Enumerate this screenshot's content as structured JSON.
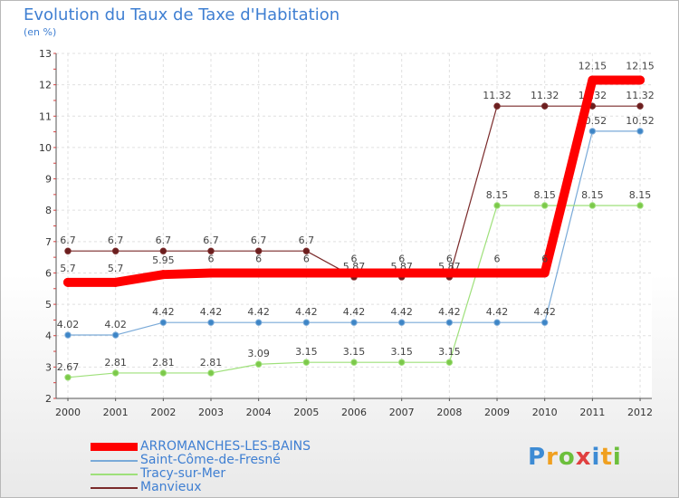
{
  "title": "Evolution du Taux de Taxe d'Habitation",
  "subtitle": "(en %)",
  "brand": {
    "letters": [
      "P",
      "r",
      "o",
      "x",
      "i",
      "t",
      "i"
    ],
    "colors": [
      "#3d8bd4",
      "#f0a020",
      "#6cbf3c",
      "#e04040",
      "#3d8bd4",
      "#f0a020",
      "#6cbf3c"
    ]
  },
  "chart_data": {
    "type": "line",
    "title": "Evolution du Taux de Taxe d'Habitation",
    "ylabel": "(en %)",
    "xlabel": "",
    "x": [
      2000,
      2001,
      2002,
      2003,
      2004,
      2005,
      2006,
      2007,
      2008,
      2009,
      2010,
      2011,
      2012
    ],
    "x_tick_labels": [
      "2000",
      "2001",
      "2002",
      "2003",
      "2004",
      "2005",
      "2006",
      "2007",
      "2008",
      "2009",
      "2010",
      "2011",
      "2012"
    ],
    "ylim": [
      2,
      13
    ],
    "y_ticks": [
      2,
      3,
      4,
      5,
      6,
      7,
      8,
      9,
      10,
      11,
      12,
      13
    ],
    "y_tick_labels": [
      "2",
      "3",
      "4",
      "5",
      "6",
      "7",
      "8",
      "9",
      "10",
      "11",
      "12",
      "13"
    ],
    "grid": true,
    "legend_position": "bottom-left",
    "series": [
      {
        "name": "ARROMANCHES-LES-BAINS",
        "color": "#ff0000",
        "emphasis": true,
        "values": [
          5.7,
          5.7,
          5.95,
          6,
          6,
          6,
          6,
          6,
          6,
          6,
          6,
          12.15,
          12.15
        ],
        "labels": [
          "5.7",
          "5.7",
          "5.95",
          "6",
          "6",
          "6",
          "6",
          "6",
          "6",
          "6",
          "6",
          "12.15",
          "12.15"
        ]
      },
      {
        "name": "Saint-Côme-de-Fresné",
        "color": "#7aaad8",
        "marker": "#3d85c6",
        "values": [
          4.02,
          4.02,
          4.42,
          4.42,
          4.42,
          4.42,
          4.42,
          4.42,
          4.42,
          4.42,
          4.42,
          10.52,
          10.52
        ],
        "labels": [
          "4.02",
          "4.02",
          "4.42",
          "4.42",
          "4.42",
          "4.42",
          "4.42",
          "4.42",
          "4.42",
          "4.42",
          "4.42",
          "10.52",
          "10.52"
        ]
      },
      {
        "name": "Tracy-sur-Mer",
        "color": "#9ee07a",
        "marker": "#7cc84a",
        "values": [
          2.67,
          2.81,
          2.81,
          2.81,
          3.09,
          3.15,
          3.15,
          3.15,
          3.15,
          8.15,
          8.15,
          8.15,
          8.15
        ],
        "labels": [
          "2.67",
          "2.81",
          "2.81",
          "2.81",
          "3.09",
          "3.15",
          "3.15",
          "3.15",
          "3.15",
          "8.15",
          "8.15",
          "8.15",
          "8.15"
        ]
      },
      {
        "name": "Manvieux",
        "color": "#7a2a2a",
        "marker": "#6b1f1f",
        "values": [
          6.7,
          6.7,
          6.7,
          6.7,
          6.7,
          6.7,
          5.87,
          5.87,
          5.87,
          11.32,
          11.32,
          11.32,
          11.32
        ],
        "labels": [
          "6.7",
          "6.7",
          "6.7",
          "6.7",
          "6.7",
          "6.7",
          "5.87",
          "5.87",
          "5.87",
          "11.32",
          "11.32",
          "11.32",
          "11.32"
        ]
      }
    ]
  }
}
